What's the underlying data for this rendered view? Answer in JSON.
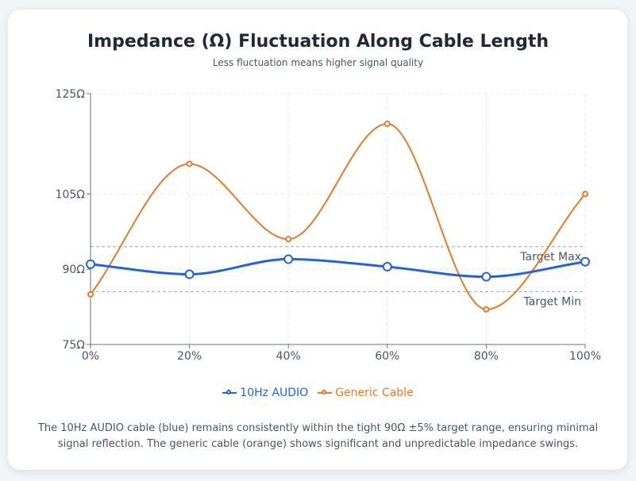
{
  "chart_data": {
    "type": "line",
    "title": "Impedance (Ω) Fluctuation Along Cable Length",
    "subtitle": "Less fluctuation means higher signal quality",
    "x": [
      "0%",
      "20%",
      "40%",
      "60%",
      "80%",
      "100%"
    ],
    "y_ticks": [
      {
        "value": 125,
        "label": "125Ω"
      },
      {
        "value": 105,
        "label": "105Ω"
      },
      {
        "value": 90,
        "label": "90Ω"
      },
      {
        "value": 75,
        "label": "75Ω"
      }
    ],
    "ylim": [
      75,
      125
    ],
    "grid": true,
    "series": [
      {
        "name": "10Hz AUDIO",
        "color": "#2563d6",
        "values": [
          91,
          89,
          92,
          90.5,
          88.5,
          91.5
        ]
      },
      {
        "name": "Generic Cable",
        "color": "#e07b2c",
        "values": [
          85,
          111,
          96,
          119,
          82,
          105
        ]
      }
    ],
    "reference_lines": [
      {
        "label": "Target Max",
        "value": 94.5
      },
      {
        "label": "Target Min",
        "value": 85.5
      }
    ],
    "legend_position": "bottom"
  },
  "note": "The 10Hz AUDIO cable (blue) remains consistently within the tight 90Ω ±5% target range, ensuring minimal signal reflection. The generic cable (orange) shows significant and unpredictable impedance swings."
}
